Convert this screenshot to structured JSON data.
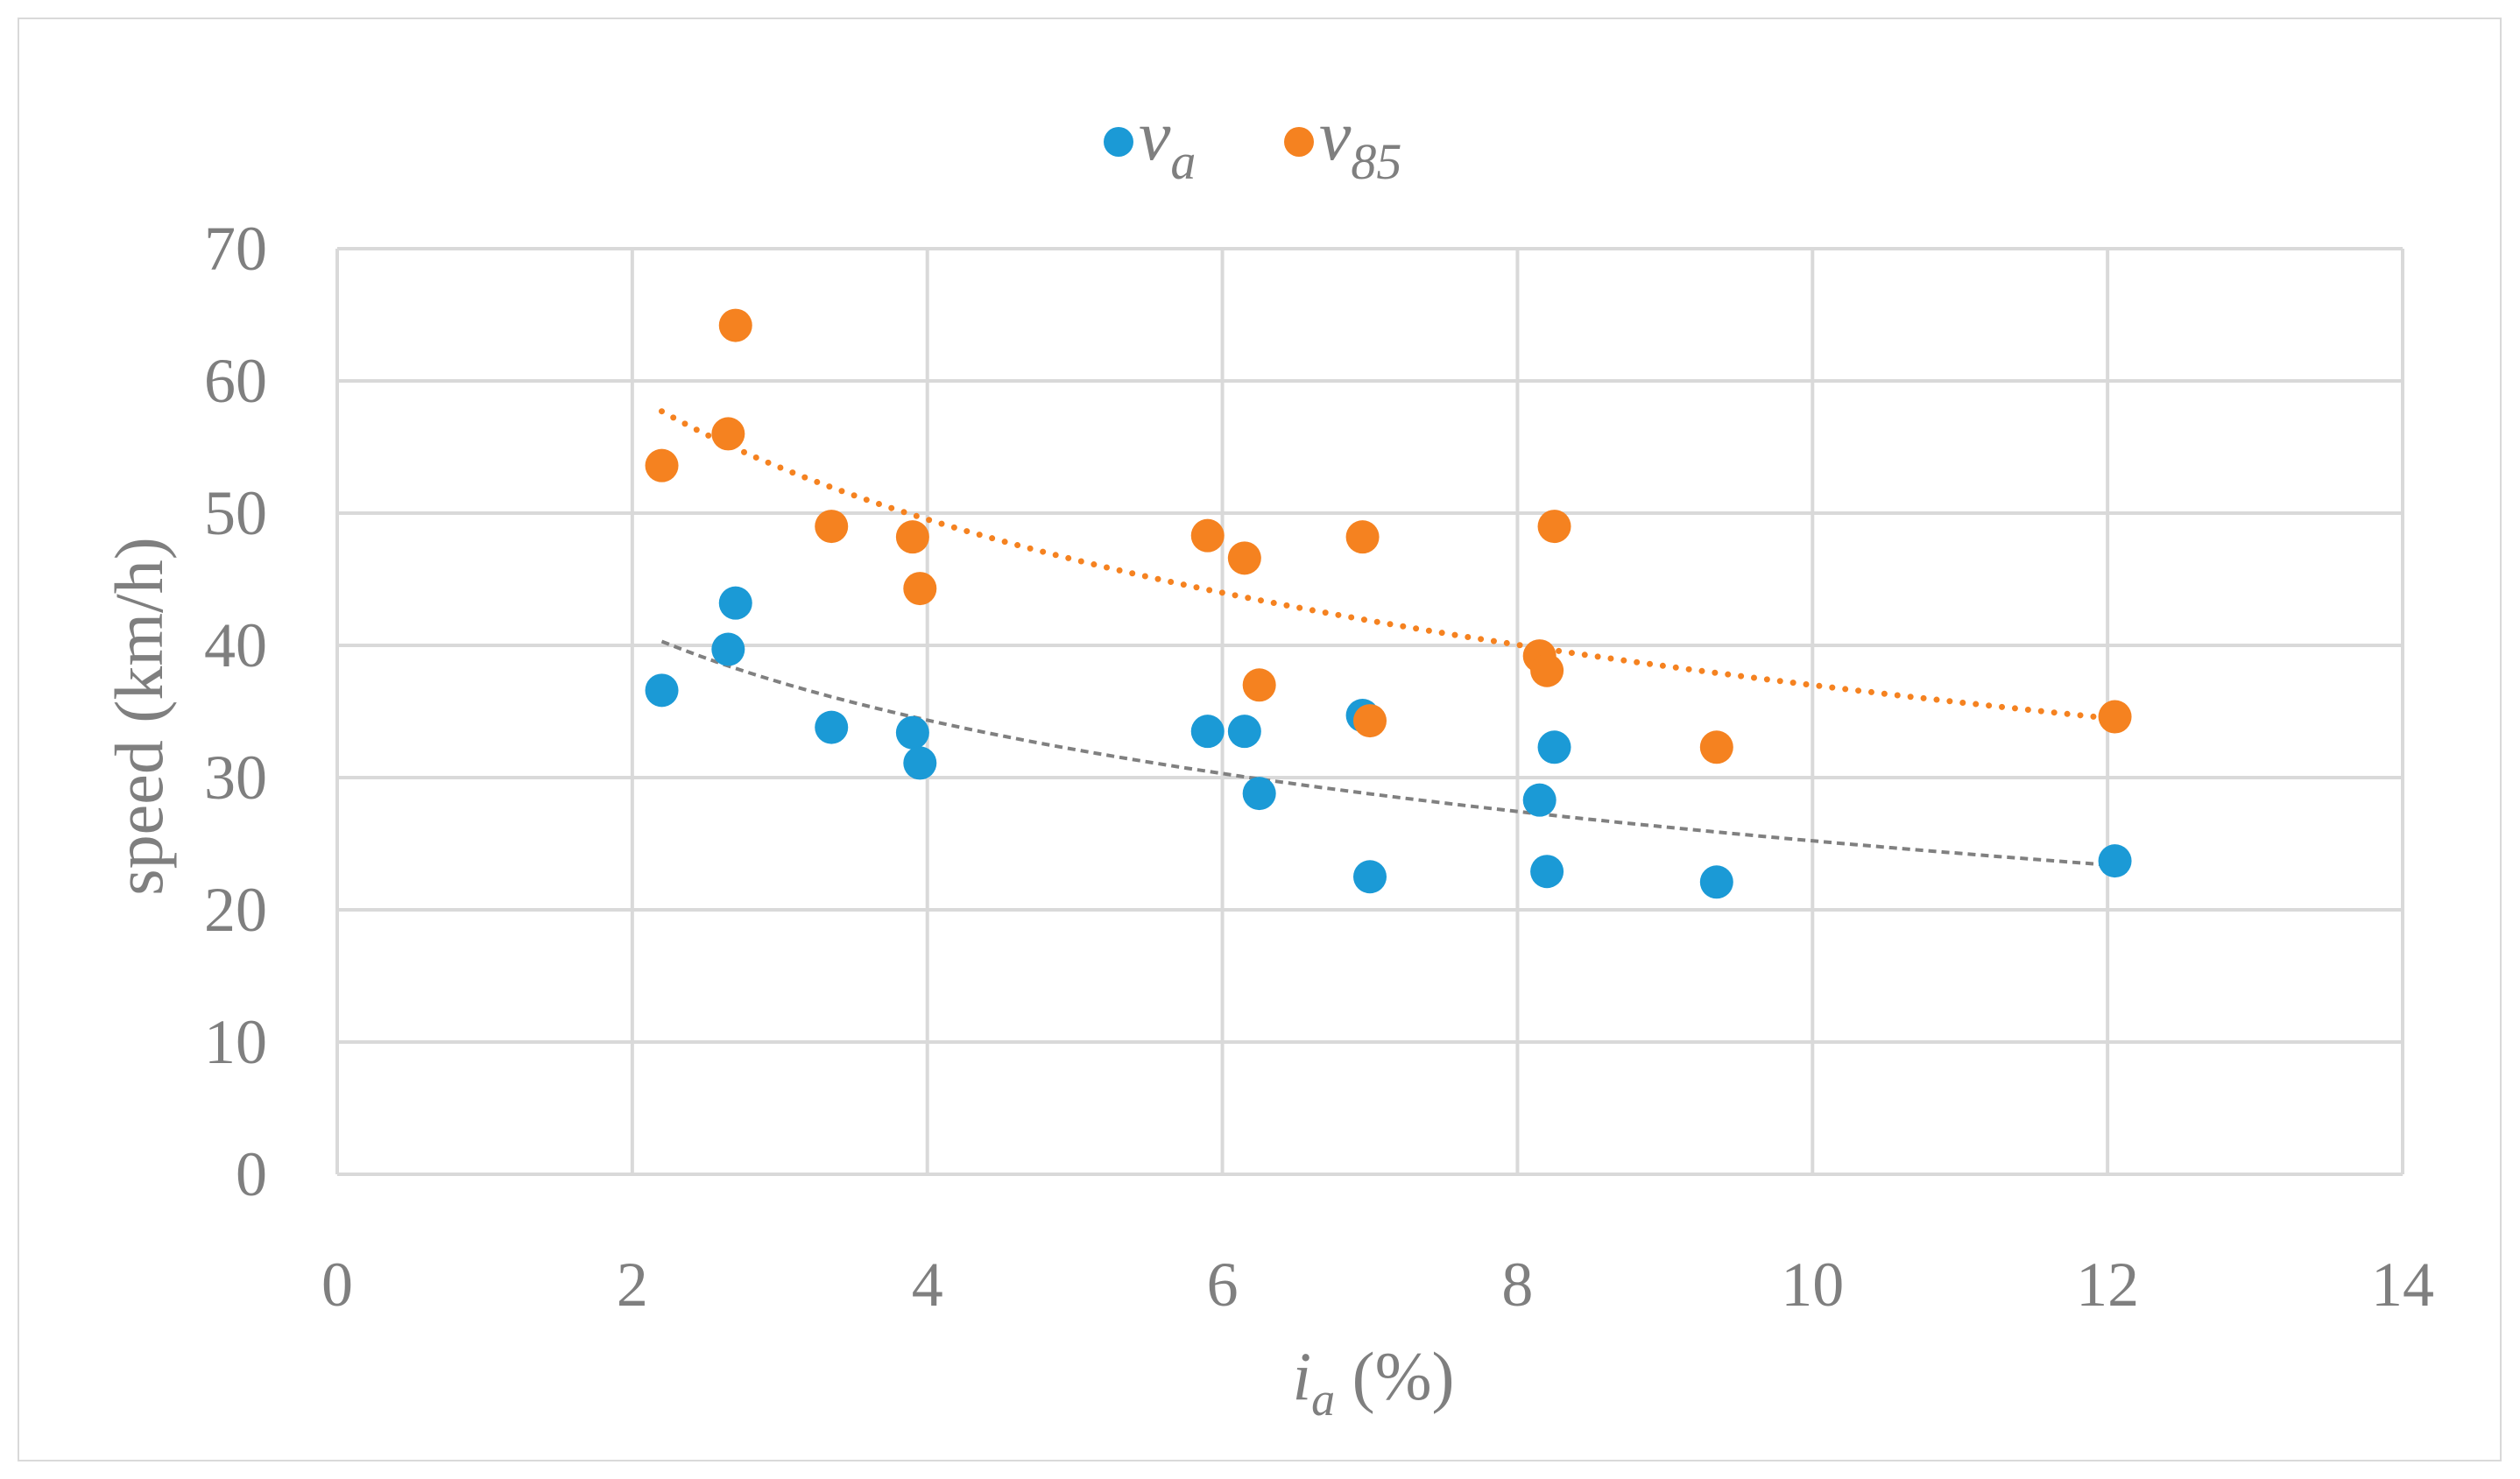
{
  "chart_data": {
    "type": "scatter",
    "title": "",
    "xlabel": "i_a (%)",
    "xlabel_main": "i",
    "xlabel_sub": "a",
    "xlabel_rest": " (%)",
    "ylabel": "speed  (km/h)",
    "xlim": [
      0,
      14
    ],
    "ylim": [
      0,
      70
    ],
    "x_ticks": [
      0,
      2,
      4,
      6,
      8,
      10,
      12,
      14
    ],
    "y_ticks": [
      0,
      10,
      20,
      30,
      40,
      50,
      60,
      70
    ],
    "grid": true,
    "legend_position": "top-center",
    "series": [
      {
        "name": "v_a",
        "legend_main": "v",
        "legend_sub": "a",
        "color": "#1b9ad6",
        "trendline": {
          "type": "logarithmic",
          "style": "dashed",
          "color": "#808080",
          "x_range": [
            2.2,
            12.0
          ],
          "y_start": 40.3,
          "y_end": 23.4
        },
        "points": [
          {
            "x": 2.2,
            "y": 36.6
          },
          {
            "x": 2.65,
            "y": 39.7
          },
          {
            "x": 2.7,
            "y": 43.2
          },
          {
            "x": 3.35,
            "y": 33.8
          },
          {
            "x": 3.9,
            "y": 33.4
          },
          {
            "x": 3.95,
            "y": 31.1
          },
          {
            "x": 5.9,
            "y": 33.5
          },
          {
            "x": 6.15,
            "y": 33.5
          },
          {
            "x": 6.25,
            "y": 28.8
          },
          {
            "x": 6.95,
            "y": 34.7
          },
          {
            "x": 7.0,
            "y": 22.5
          },
          {
            "x": 8.15,
            "y": 28.3
          },
          {
            "x": 8.2,
            "y": 22.9
          },
          {
            "x": 8.25,
            "y": 32.3
          },
          {
            "x": 9.35,
            "y": 22.1
          },
          {
            "x": 12.05,
            "y": 23.7
          }
        ]
      },
      {
        "name": "v_85",
        "legend_main": "v",
        "legend_sub": "85",
        "color": "#f58220",
        "trendline": {
          "type": "logarithmic",
          "style": "dotted",
          "color": "#f58220",
          "x_range": [
            2.2,
            12.0
          ],
          "y_start": 57.7,
          "y_end": 34.5
        },
        "points": [
          {
            "x": 2.2,
            "y": 53.6
          },
          {
            "x": 2.65,
            "y": 56.0
          },
          {
            "x": 2.7,
            "y": 64.2
          },
          {
            "x": 3.35,
            "y": 49.0
          },
          {
            "x": 3.9,
            "y": 48.2
          },
          {
            "x": 3.95,
            "y": 44.3
          },
          {
            "x": 5.9,
            "y": 48.3
          },
          {
            "x": 6.15,
            "y": 46.6
          },
          {
            "x": 6.25,
            "y": 37.0
          },
          {
            "x": 6.95,
            "y": 48.2
          },
          {
            "x": 7.0,
            "y": 34.3
          },
          {
            "x": 8.15,
            "y": 39.2
          },
          {
            "x": 8.2,
            "y": 38.1
          },
          {
            "x": 8.25,
            "y": 49.0
          },
          {
            "x": 9.35,
            "y": 32.3
          },
          {
            "x": 12.05,
            "y": 34.6
          }
        ]
      }
    ]
  }
}
